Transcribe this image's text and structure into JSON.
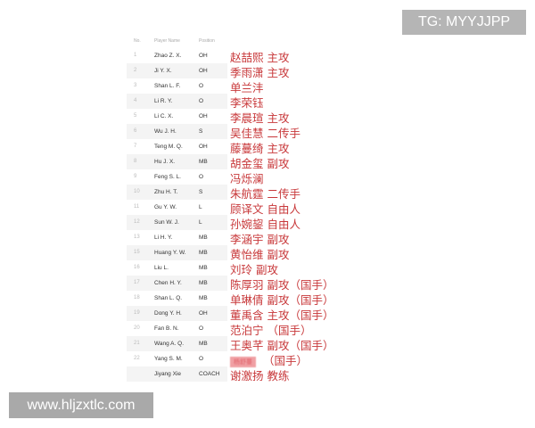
{
  "watermark_top": "TG: MYYJJPP",
  "watermark_bottom": "www.hljzxtlc.com",
  "table": {
    "headers": [
      "No.",
      "Player Name",
      "Position"
    ],
    "rows": [
      {
        "no": "1",
        "name": "Zhao Z. X.",
        "pos": "OH",
        "note": "赵喆熙 主攻"
      },
      {
        "no": "2",
        "name": "Ji Y. X.",
        "pos": "OH",
        "note": "季雨潇 主攻"
      },
      {
        "no": "3",
        "name": "Shan L. F.",
        "pos": "O",
        "note": "单兰沣"
      },
      {
        "no": "4",
        "name": "Li R. Y.",
        "pos": "O",
        "note": "李荣钰"
      },
      {
        "no": "5",
        "name": "Li C. X.",
        "pos": "OH",
        "note": "李晨瑄 主攻"
      },
      {
        "no": "6",
        "name": "Wu J. H.",
        "pos": "S",
        "note": "吴佳慧 二传手"
      },
      {
        "no": "7",
        "name": "Teng M. Q.",
        "pos": "OH",
        "note": "藤蔓绮 主攻"
      },
      {
        "no": "8",
        "name": "Hu J. X.",
        "pos": "MB",
        "note": "胡金玺 副攻"
      },
      {
        "no": "9",
        "name": "Feng S. L.",
        "pos": "O",
        "note": "冯烁澜"
      },
      {
        "no": "10",
        "name": "Zhu H. T.",
        "pos": "S",
        "note": "朱航霆 二传手"
      },
      {
        "no": "11",
        "name": "Gu Y. W.",
        "pos": "L",
        "note": "顾译文 自由人"
      },
      {
        "no": "12",
        "name": "Sun W. J.",
        "pos": "L",
        "note": "孙婉鋆 自由人"
      },
      {
        "no": "13",
        "name": "Li H. Y.",
        "pos": "MB",
        "note": "李涵宇 副攻"
      },
      {
        "no": "15",
        "name": "Huang Y. W.",
        "pos": "MB",
        "note": "黄怡维 副攻"
      },
      {
        "no": "16",
        "name": "Liu L.",
        "pos": "MB",
        "note": "刘玲 副攻"
      },
      {
        "no": "17",
        "name": "Chen H. Y.",
        "pos": "MB",
        "note": "陈厚羽 副攻（国手）"
      },
      {
        "no": "18",
        "name": "Shan L. Q.",
        "pos": "MB",
        "note": "单琳倩 副攻（国手）"
      },
      {
        "no": "19",
        "name": "Dong Y. H.",
        "pos": "OH",
        "note": "董禹含 主攻（国手）"
      },
      {
        "no": "20",
        "name": "Fan B. N.",
        "pos": "O",
        "note": "范泊宁 （国手）"
      },
      {
        "no": "21",
        "name": "Wang A. Q.",
        "pos": "MB",
        "note": "王奥芊 副攻（国手）"
      },
      {
        "no": "22",
        "name": "Yang S. M.",
        "pos": "O",
        "note": "（国手）",
        "highlight": "杨舒蔓"
      },
      {
        "no": "",
        "name": "Jiyang Xie",
        "pos": "COACH",
        "note": "谢激扬 教练"
      }
    ]
  }
}
